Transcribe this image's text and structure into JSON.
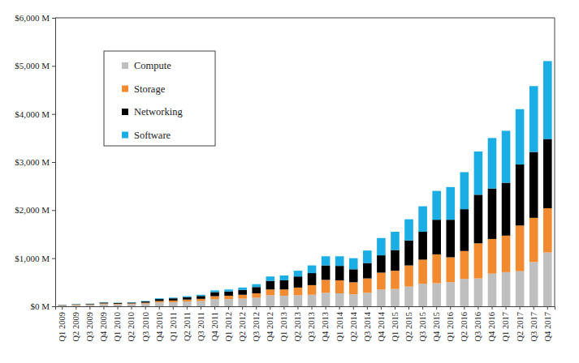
{
  "chart_data": {
    "type": "bar",
    "stacked": true,
    "legend": "upper left",
    "grid": false,
    "categories": [
      "Q1 2009",
      "Q2 2009",
      "Q3 2009",
      "Q4 2009",
      "Q1 2010",
      "Q2 2010",
      "Q3 2010",
      "Q4 2010",
      "Q1 2011",
      "Q2 2011",
      "Q3 2011",
      "Q4 2011",
      "Q1 2012",
      "Q2 2012",
      "Q3 2012",
      "Q4 2012",
      "Q1 2013",
      "Q2 2013",
      "Q3 2013",
      "Q4 2013",
      "Q1 2014",
      "Q2 2014",
      "Q3 2014",
      "Q4 2014",
      "Q1 2015",
      "Q2 2015",
      "Q3 2015",
      "Q4 2015",
      "Q1 2016",
      "Q2 2016",
      "Q3 2016",
      "Q4 2016",
      "Q1 2017",
      "Q2 2017",
      "Q3 2017",
      "Q4 2017"
    ],
    "series": [
      {
        "name": "Compute",
        "color": "#bfbfbf",
        "values": [
          20,
          25,
          30,
          45,
          40,
          45,
          55,
          80,
          85,
          100,
          110,
          150,
          150,
          160,
          180,
          230,
          220,
          230,
          240,
          280,
          270,
          250,
          280,
          350,
          360,
          410,
          470,
          480,
          500,
          570,
          580,
          680,
          710,
          730,
          920,
          1120
        ]
      },
      {
        "name": "Storage",
        "color": "#f28a30",
        "values": [
          5,
          8,
          10,
          15,
          13,
          15,
          20,
          30,
          35,
          40,
          45,
          60,
          70,
          80,
          90,
          120,
          130,
          160,
          200,
          270,
          270,
          250,
          300,
          350,
          380,
          440,
          500,
          600,
          520,
          580,
          730,
          720,
          760,
          950,
          920,
          920
        ]
      },
      {
        "name": "Networking",
        "color": "#000000",
        "values": [
          5,
          8,
          10,
          18,
          15,
          17,
          25,
          40,
          45,
          50,
          60,
          85,
          90,
          100,
          130,
          180,
          190,
          230,
          250,
          300,
          300,
          270,
          320,
          360,
          430,
          520,
          580,
          720,
          780,
          870,
          1010,
          1050,
          1100,
          1270,
          1370,
          1440
        ]
      },
      {
        "name": "Software",
        "color": "#1aaee5",
        "values": [
          2,
          4,
          5,
          7,
          7,
          8,
          10,
          15,
          15,
          20,
          25,
          35,
          40,
          50,
          60,
          90,
          100,
          120,
          160,
          190,
          200,
          230,
          260,
          360,
          380,
          440,
          530,
          600,
          680,
          770,
          900,
          1050,
          1080,
          1150,
          1370,
          1620
        ]
      }
    ],
    "ylim": [
      0,
      6000
    ],
    "yticks": [
      {
        "value": 0,
        "label": "$0 M"
      },
      {
        "value": 1000,
        "label": "$1,000 M"
      },
      {
        "value": 2000,
        "label": "$2,000 M"
      },
      {
        "value": 3000,
        "label": "$3,000 M"
      },
      {
        "value": 4000,
        "label": "$4,000 M"
      },
      {
        "value": 5000,
        "label": "$5,000 M"
      },
      {
        "value": 6000,
        "label": "$6,000 M"
      }
    ]
  }
}
